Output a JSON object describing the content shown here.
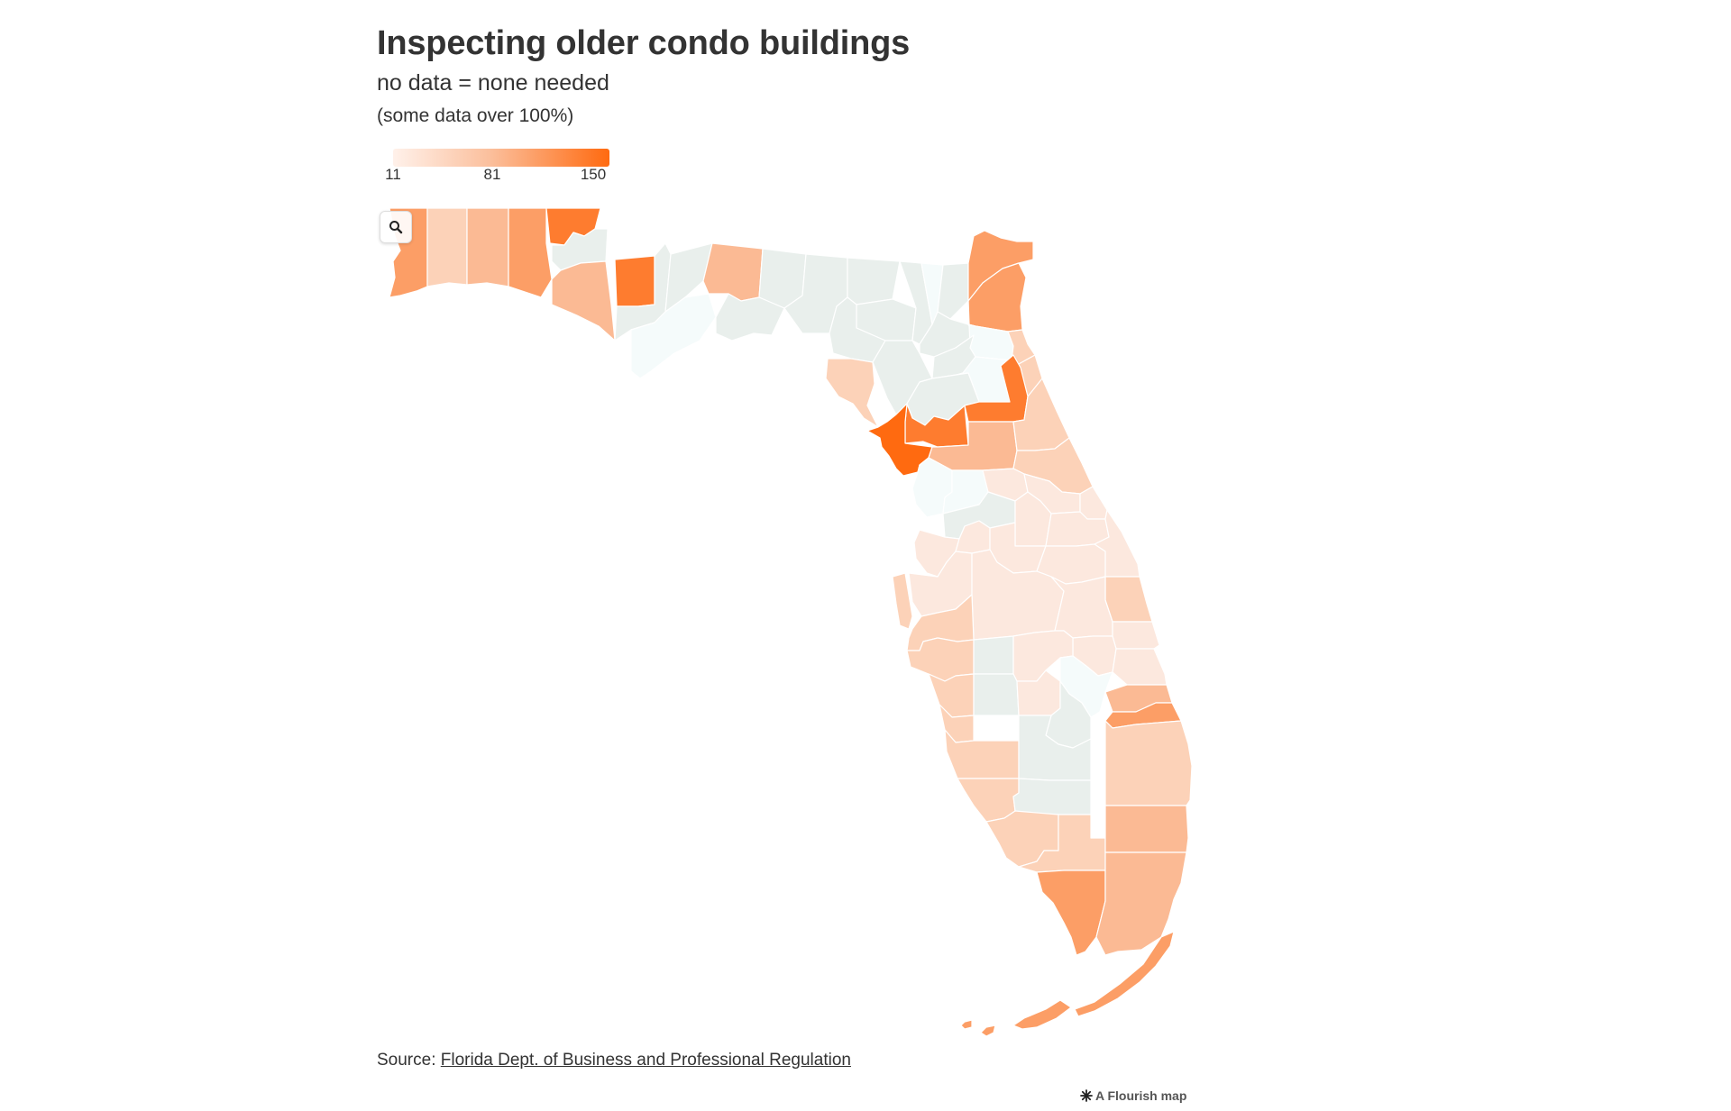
{
  "header": {
    "title": "Inspecting older condo buildings",
    "subtitle": "no data = none needed",
    "note": "(some data over 100%)"
  },
  "legend": {
    "min_label": "11",
    "mid_label": "81",
    "max_label": "150",
    "colors": [
      "#fff1ea",
      "#fbbf9c",
      "#ff6a10"
    ]
  },
  "zoom": {
    "icon": "search-icon"
  },
  "map_colors": {
    "no_data": "#e9efec",
    "none": "#f5fbfb",
    "level_1": "#fce8de",
    "level_2": "#fcd2b8",
    "level_3": "#fbba94",
    "level_4": "#fc9e66",
    "level_5": "#fe7c2f",
    "level_6": "#ff6a10"
  },
  "footer": {
    "source_prefix": "Source: ",
    "source_link": "Florida Dept. of Business and Professional Regulation",
    "credit": "A Flourish map",
    "credit_icon": "flourish-icon"
  }
}
